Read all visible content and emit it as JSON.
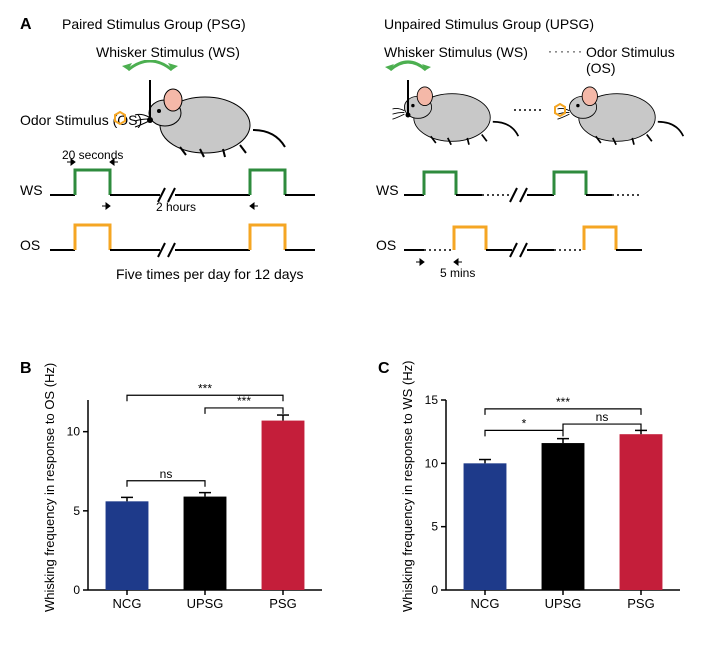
{
  "panelA": {
    "label": "A",
    "psg": {
      "title": "Paired Stimulus Group (PSG)",
      "ws_label": "Whisker Stimulus (WS)",
      "os_label": "Odor Stimulus (OS)",
      "ws_axis": "WS",
      "os_axis": "OS",
      "duration_label": "20 seconds",
      "interval_label": "2 hours",
      "caption": "Five times per day for 12 days"
    },
    "upsg": {
      "title": "Unpaired Stimulus Group (UPSG)",
      "ws_label": "Whisker Stimulus (WS)",
      "os_label": "Odor Stimulus (OS)",
      "ws_axis": "WS",
      "os_axis": "OS",
      "delay_label": "5 mins"
    },
    "colors": {
      "ws_line": "#2e8b3d",
      "os_line": "#f5a623",
      "arrow_green": "#4caf50",
      "odor_hex": "#f5a623",
      "mouse_body": "#c8c8c8",
      "mouse_ear": "#f4b8a8",
      "line_black": "#000000"
    }
  },
  "panelB": {
    "label": "B",
    "type": "bar",
    "ylabel": "Whisking frequency in response to OS (Hz)",
    "categories": [
      "NCG",
      "UPSG",
      "PSG"
    ],
    "values": [
      5.6,
      5.9,
      10.7
    ],
    "errors": [
      0.25,
      0.25,
      0.35
    ],
    "bar_colors": [
      "#1e3a8a",
      "#000000",
      "#c41e3a"
    ],
    "ylim": [
      0,
      12
    ],
    "ytick_step": 5,
    "yticks": [
      0,
      5,
      10
    ],
    "sig": [
      {
        "from": 0,
        "to": 1,
        "label": "ns",
        "y": 6.9
      },
      {
        "from": 1,
        "to": 2,
        "label": "***",
        "y": 11.5
      },
      {
        "from": 0,
        "to": 2,
        "label": "***",
        "y": 12.3
      }
    ],
    "axis_color": "#000000",
    "bar_width": 0.55
  },
  "panelC": {
    "label": "C",
    "type": "bar",
    "ylabel": "Whisking frequency in response to WS (Hz)",
    "categories": [
      "NCG",
      "UPSG",
      "PSG"
    ],
    "values": [
      10.0,
      11.6,
      12.3
    ],
    "errors": [
      0.3,
      0.35,
      0.3
    ],
    "bar_colors": [
      "#1e3a8a",
      "#000000",
      "#c41e3a"
    ],
    "ylim": [
      0,
      15
    ],
    "ytick_step": 5,
    "yticks": [
      0,
      5,
      10,
      15
    ],
    "sig": [
      {
        "from": 0,
        "to": 1,
        "label": "*",
        "y": 12.6
      },
      {
        "from": 1,
        "to": 2,
        "label": "ns",
        "y": 13.1
      },
      {
        "from": 0,
        "to": 2,
        "label": "***",
        "y": 14.3
      }
    ],
    "axis_color": "#000000",
    "bar_width": 0.55
  }
}
